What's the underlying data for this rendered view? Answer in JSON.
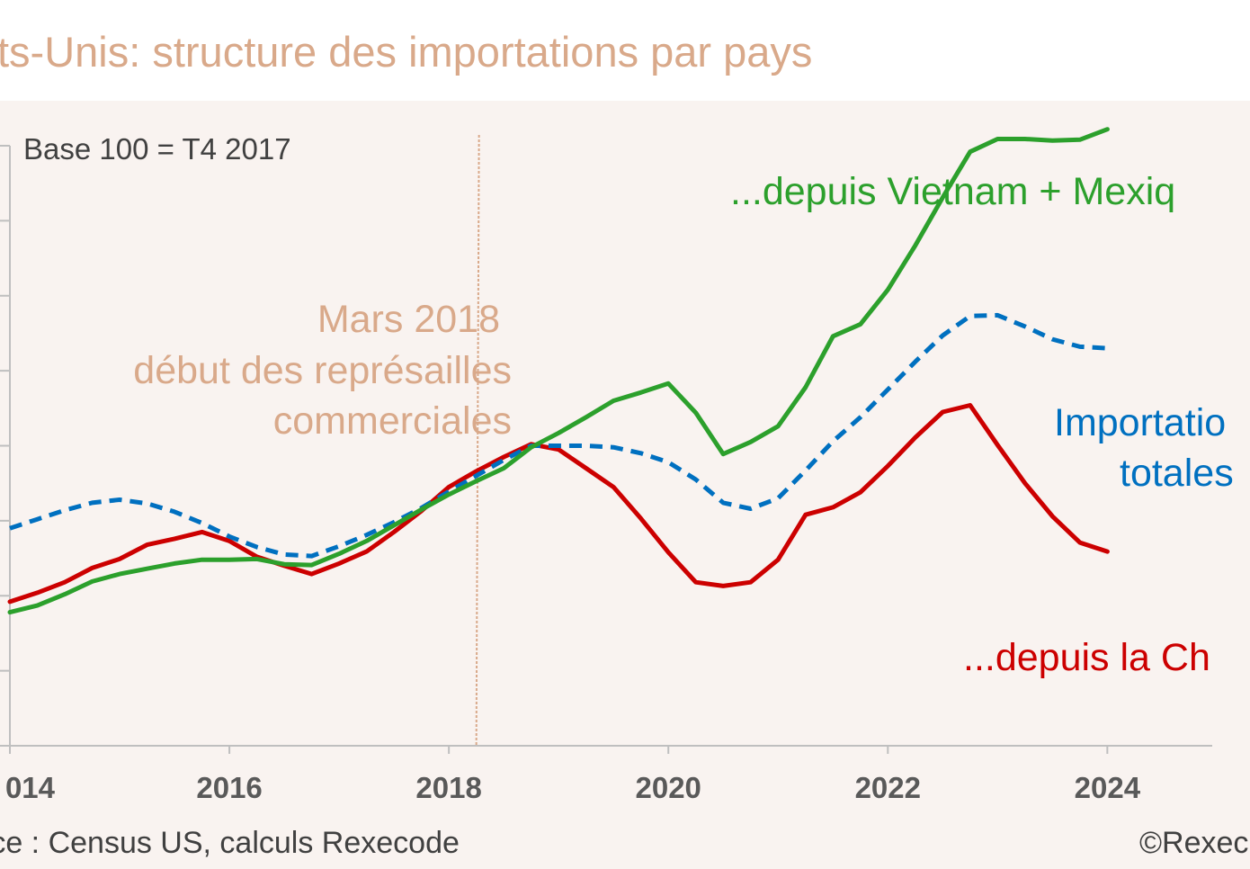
{
  "title": "ts-Unis: structure des importations par pays",
  "note": "Base 100 = T4 2017",
  "source": "rce : Census US, calculs Rexecode",
  "credit": "©Rexec",
  "colors": {
    "title": "#d9a98a",
    "china": "#cc0000",
    "total": "#0070c0",
    "vietnam_mexico": "#2ca02c",
    "marker": "#d9a98a",
    "axis": "#bfbfbf"
  },
  "chart_data": {
    "type": "line",
    "x_ticks": [
      "014",
      "2016",
      "2018",
      "2020",
      "2022",
      "2024"
    ],
    "x_tick_values": [
      2014,
      2016,
      2018,
      2020,
      2022,
      2024
    ],
    "xlim": [
      2014,
      2025.3
    ],
    "ylim": [
      70,
      150
    ],
    "grid": false,
    "series": [
      {
        "key": "china",
        "style": "solid",
        "x": [
          2014.0,
          2014.25,
          2014.5,
          2014.75,
          2015.0,
          2015.25,
          2015.5,
          2015.75,
          2016.0,
          2016.25,
          2016.5,
          2016.75,
          2017.0,
          2017.25,
          2017.5,
          2017.75,
          2018.0,
          2018.25,
          2018.5,
          2018.75,
          2019.0,
          2019.25,
          2019.5,
          2019.75,
          2020.0,
          2020.25,
          2020.5,
          2020.75,
          2021.0,
          2021.25,
          2021.5,
          2021.75,
          2022.0,
          2022.25,
          2022.5,
          2022.75,
          2023.0,
          2023.25,
          2023.5,
          2023.75,
          2024.0
        ],
        "y": [
          89.2,
          90.4,
          91.8,
          93.7,
          94.9,
          96.8,
          97.6,
          98.5,
          97.3,
          95.2,
          94.0,
          92.9,
          94.3,
          95.9,
          98.5,
          101.3,
          104.5,
          106.6,
          108.5,
          110.2,
          109.5,
          107.0,
          104.5,
          100.3,
          95.8,
          91.8,
          91.3,
          91.8,
          94.8,
          100.8,
          101.8,
          103.8,
          107.3,
          111.1,
          114.5,
          115.4,
          110.1,
          105.0,
          100.6,
          97.1,
          95.9
        ]
      },
      {
        "key": "total",
        "style": "dashed",
        "x": [
          2014.0,
          2014.25,
          2014.5,
          2014.75,
          2015.0,
          2015.25,
          2015.5,
          2015.75,
          2016.0,
          2016.25,
          2016.5,
          2016.75,
          2017.0,
          2017.25,
          2017.5,
          2017.75,
          2018.0,
          2018.25,
          2018.5,
          2018.75,
          2019.0,
          2019.25,
          2019.5,
          2019.75,
          2020.0,
          2020.25,
          2020.5,
          2020.75,
          2021.0,
          2021.25,
          2021.5,
          2021.75,
          2022.0,
          2022.25,
          2022.5,
          2022.75,
          2023.0,
          2023.25,
          2023.5,
          2023.75,
          2024.0
        ],
        "y": [
          99.0,
          100.2,
          101.4,
          102.4,
          102.8,
          102.3,
          101.2,
          99.7,
          97.9,
          96.5,
          95.5,
          95.3,
          96.6,
          98.1,
          99.8,
          101.7,
          103.9,
          106.0,
          108.1,
          110.0,
          110.0,
          110.0,
          109.8,
          109.0,
          107.8,
          105.5,
          102.4,
          101.6,
          103.0,
          106.7,
          110.6,
          113.8,
          117.5,
          121.2,
          124.7,
          127.3,
          127.4,
          125.9,
          124.2,
          123.2,
          123.0
        ]
      },
      {
        "key": "vietnam_mexico",
        "style": "solid",
        "x": [
          2014.0,
          2014.25,
          2014.5,
          2014.75,
          2015.0,
          2015.25,
          2015.5,
          2015.75,
          2016.0,
          2016.25,
          2016.5,
          2016.75,
          2017.0,
          2017.25,
          2017.5,
          2017.75,
          2018.0,
          2018.25,
          2018.5,
          2018.75,
          2019.0,
          2019.25,
          2019.5,
          2019.75,
          2020.0,
          2020.25,
          2020.5,
          2020.75,
          2021.0,
          2021.25,
          2021.5,
          2021.75,
          2022.0,
          2022.25,
          2022.5,
          2022.75,
          2023.0,
          2023.25,
          2023.5,
          2023.75,
          2024.0
        ],
        "y": [
          87.8,
          88.7,
          90.2,
          91.9,
          92.9,
          93.6,
          94.3,
          94.8,
          94.8,
          94.9,
          94.2,
          94.1,
          95.6,
          97.3,
          99.4,
          101.5,
          103.5,
          105.3,
          107.0,
          109.8,
          111.7,
          113.8,
          116.0,
          117.1,
          118.3,
          114.4,
          108.9,
          110.5,
          112.6,
          117.8,
          124.6,
          126.2,
          130.8,
          136.7,
          143.1,
          149.2,
          150.9,
          150.9,
          150.7,
          150.8,
          152.2
        ]
      }
    ],
    "marker": {
      "x": 2018.25
    },
    "labels": {
      "marker_line1": "Mars 2018 ",
      "marker_line2": "début des représailles",
      "marker_line3": "commerciales",
      "vietnam_mexico": "...depuis Vietnam + Mexiq",
      "total_line1": "Importatio",
      "total_line2": "totales",
      "china": "...depuis la Ch"
    }
  }
}
